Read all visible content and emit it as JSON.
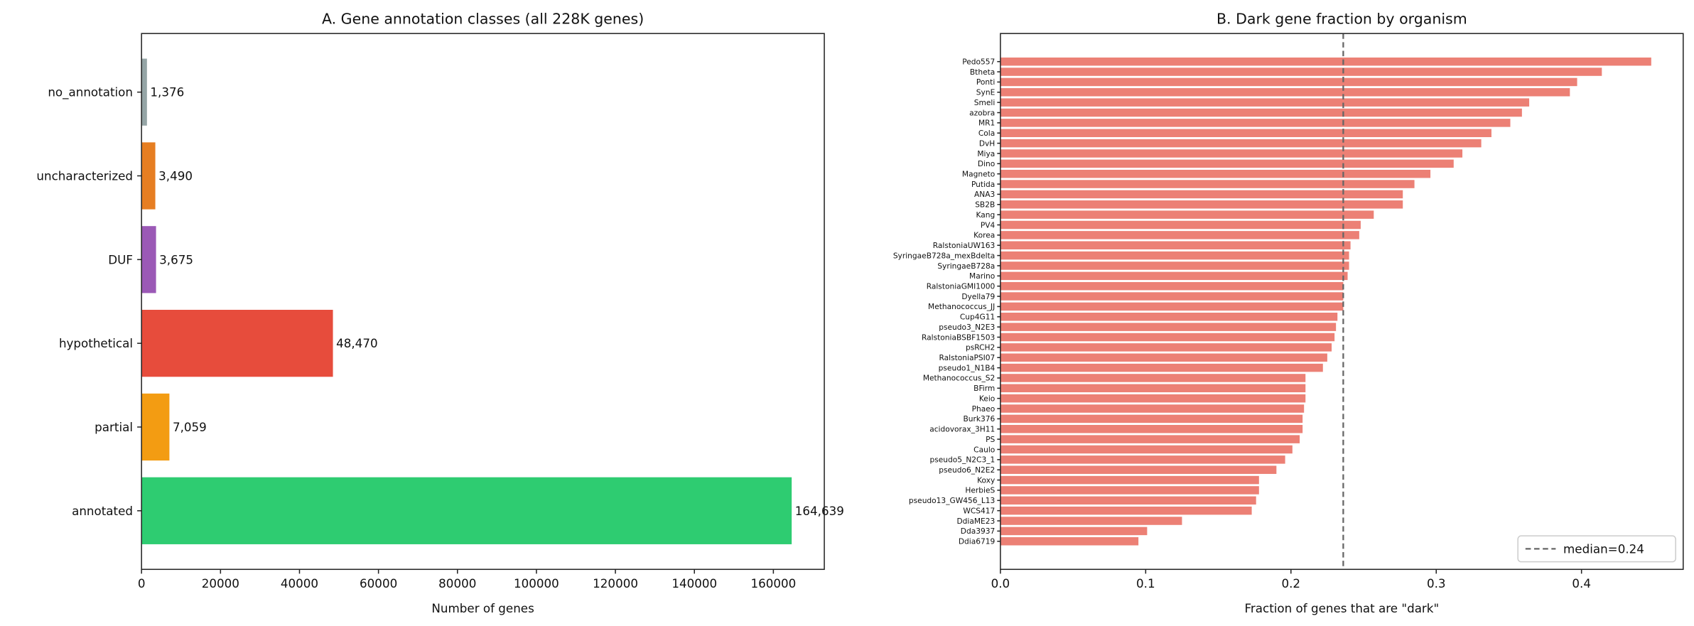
{
  "chart_data": [
    {
      "type": "bar",
      "orientation": "horizontal",
      "title": "A. Gene annotation classes (all 228K genes)",
      "xlabel": "Number of genes",
      "ylabel": "",
      "xlim": [
        0,
        172900
      ],
      "xticks": [
        0,
        20000,
        40000,
        60000,
        80000,
        100000,
        120000,
        140000,
        160000
      ],
      "grid": false,
      "categories": [
        "no_annotation",
        "uncharacterized",
        "DUF",
        "hypothetical",
        "partial",
        "annotated"
      ],
      "values": [
        1376,
        3490,
        3675,
        48470,
        7059,
        164639
      ],
      "data_labels": [
        "1,376",
        "3,490",
        "3,675",
        "48,470",
        "7,059",
        "164,639"
      ],
      "colors": [
        "#95a5a6",
        "#e67e22",
        "#9b59b6",
        "#e74c3c",
        "#f39c12",
        "#2ecc71"
      ]
    },
    {
      "type": "bar",
      "orientation": "horizontal",
      "title": "B. Dark gene fraction by organism",
      "xlabel": "Fraction of genes that are \"dark\"",
      "ylabel": "",
      "xlim": [
        0,
        0.47
      ],
      "xticks": [
        0.0,
        0.1,
        0.2,
        0.3,
        0.4
      ],
      "xtick_labels": [
        "0.0",
        "0.1",
        "0.2",
        "0.3",
        "0.4"
      ],
      "grid": false,
      "color": "#ec8075",
      "categories": [
        "Pedo557",
        "Btheta",
        "Ponti",
        "SynE",
        "Smeli",
        "azobra",
        "MR1",
        "Cola",
        "DvH",
        "Miya",
        "Dino",
        "Magneto",
        "Putida",
        "ANA3",
        "SB2B",
        "Kang",
        "PV4",
        "Korea",
        "RalstoniaUW163",
        "SyringaeB728a_mexBdelta",
        "SyringaeB728a",
        "Marino",
        "RalstoniaGMI1000",
        "Dyella79",
        "Methanococcus_JJ",
        "Cup4G11",
        "pseudo3_N2E3",
        "RalstoniaBSBF1503",
        "psRCH2",
        "RalstoniaPSI07",
        "pseudo1_N1B4",
        "Methanococcus_S2",
        "BFirm",
        "Keio",
        "Phaeo",
        "Burk376",
        "acidovorax_3H11",
        "PS",
        "Caulo",
        "pseudo5_N2C3_1",
        "pseudo6_N2E2",
        "Koxy",
        "HerbieS",
        "pseudo13_GW456_L13",
        "WCS417",
        "DdiaME23",
        "Dda3937",
        "Ddia6719"
      ],
      "values": [
        0.448,
        0.414,
        0.397,
        0.392,
        0.364,
        0.359,
        0.351,
        0.338,
        0.331,
        0.318,
        0.312,
        0.296,
        0.285,
        0.277,
        0.277,
        0.257,
        0.248,
        0.247,
        0.241,
        0.24,
        0.24,
        0.239,
        0.236,
        0.236,
        0.236,
        0.232,
        0.231,
        0.23,
        0.228,
        0.225,
        0.222,
        0.21,
        0.21,
        0.21,
        0.209,
        0.208,
        0.208,
        0.206,
        0.201,
        0.196,
        0.19,
        0.178,
        0.178,
        0.176,
        0.173,
        0.125,
        0.101,
        0.095
      ],
      "reference_line": {
        "value": 0.236,
        "style": "dashed",
        "color": "#666666"
      },
      "legend": {
        "entries": [
          "median=0.24"
        ],
        "placement": "lower-right"
      }
    }
  ]
}
